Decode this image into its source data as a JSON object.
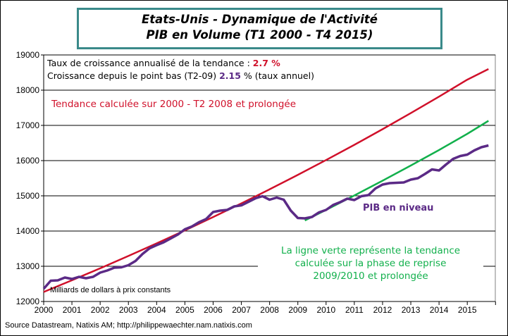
{
  "chart_data": {
    "type": "line",
    "title": [
      "Etats-Unis - Dynamique de l'Activité",
      "PIB en Volume (T1 2000 - T4 2015)"
    ],
    "ylim": [
      12000,
      19000
    ],
    "yticks": [
      12000,
      13000,
      14000,
      15000,
      16000,
      17000,
      18000,
      19000
    ],
    "xticks": [
      "2000",
      "2001",
      "2002",
      "2003",
      "2004",
      "2005",
      "2006",
      "2007",
      "2008",
      "2009",
      "2010",
      "2011",
      "2012",
      "2013",
      "2014",
      "2015"
    ],
    "xlim": [
      2000,
      2016
    ],
    "grid": "horizontal",
    "ylabel_note": "Milliards de dollars à prix constants",
    "series": [
      {
        "name": "PIB en niveau",
        "color": "#5b2a86",
        "x": [
          2000,
          2000.25,
          2000.5,
          2000.75,
          2001,
          2001.25,
          2001.5,
          2001.75,
          2002,
          2002.25,
          2002.5,
          2002.75,
          2003,
          2003.25,
          2003.5,
          2003.75,
          2004,
          2004.25,
          2004.5,
          2004.75,
          2005,
          2005.25,
          2005.5,
          2005.75,
          2006,
          2006.25,
          2006.5,
          2006.75,
          2007,
          2007.25,
          2007.5,
          2007.75,
          2008,
          2008.25,
          2008.5,
          2008.75,
          2009,
          2009.25,
          2009.5,
          2009.75,
          2010,
          2010.25,
          2010.5,
          2010.75,
          2011,
          2011.25,
          2011.5,
          2011.75,
          2012,
          2012.25,
          2012.5,
          2012.75,
          2013,
          2013.25,
          2013.5,
          2013.75,
          2014,
          2014.25,
          2014.5,
          2014.75,
          2015,
          2015.25,
          2015.5,
          2015.75
        ],
        "values": [
          12360,
          12590,
          12600,
          12680,
          12640,
          12700,
          12660,
          12700,
          12820,
          12880,
          12960,
          12970,
          13030,
          13150,
          13350,
          13510,
          13600,
          13680,
          13790,
          13900,
          14050,
          14130,
          14250,
          14340,
          14540,
          14580,
          14600,
          14700,
          14730,
          14830,
          14930,
          14990,
          14890,
          14950,
          14890,
          14580,
          14370,
          14360,
          14400,
          14530,
          14600,
          14740,
          14820,
          14920,
          14880,
          14990,
          15020,
          15210,
          15320,
          15360,
          15370,
          15380,
          15460,
          15500,
          15620,
          15750,
          15720,
          15890,
          16050,
          16130,
          16170,
          16290,
          16380,
          16430
        ]
      },
      {
        "name": "Tendance calculée sur 2000 - T2 2008 et prolongée",
        "color": "#d0102a",
        "x": [
          2000,
          2001,
          2002,
          2003,
          2004,
          2005,
          2006,
          2007,
          2008,
          2009,
          2010,
          2011,
          2012,
          2013,
          2014,
          2015,
          2015.75
        ],
        "values": [
          12270,
          12601,
          12942,
          13291,
          13650,
          14019,
          14397,
          14786,
          15185,
          15595,
          16016,
          16449,
          16893,
          17349,
          17817,
          18298,
          18600
        ]
      },
      {
        "name": "La ligne verte représente la tendance calculée sur la phase de reprise 2009/2010 et prolongée",
        "color": "#12b04c",
        "x": [
          2009.25,
          2010,
          2011,
          2012,
          2013,
          2014,
          2015,
          2015.75
        ],
        "values": [
          14300,
          14600,
          15010,
          15430,
          15860,
          16300,
          16760,
          17130
        ]
      }
    ]
  },
  "title": {
    "line1": "Etats-Unis - Dynamique de l'Activité",
    "line2": "PIB en Volume (T1 2000 - T4 2015)"
  },
  "stats": {
    "line1_prefix": "Taux de croissance annualisé de la tendance : ",
    "line1_value": "2.7 %",
    "line2_prefix": "Croissance depuis le point bas (T2-09) ",
    "line2_value": "2.15",
    "line2_suffix": " % (taux annuel)"
  },
  "annotations": {
    "red": "Tendance calculée sur 2000 - T2 2008 et prolongée",
    "pib": "PIB en niveau",
    "green1": "La ligne verte représente la tendance",
    "green2": "calculée sur la phase de reprise",
    "green3": "2009/2010 et prolongée",
    "units": "Milliards de dollars à prix constants"
  },
  "source": "Source Datastream, Natixis AM;  http://philippewaechter.nam.natixis.com"
}
